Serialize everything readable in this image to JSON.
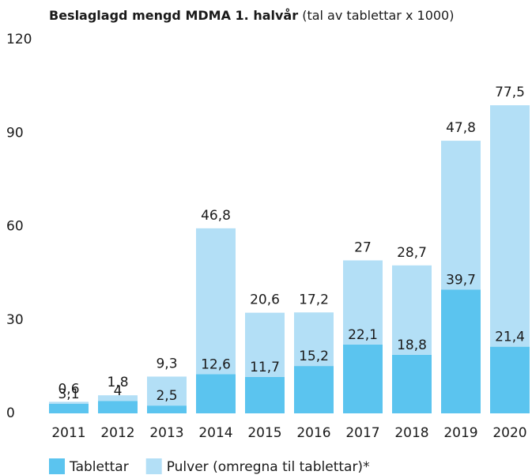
{
  "chart_data": {
    "type": "stacked_bar",
    "title": "Beslaglagd mengd MDMA 1. halvår",
    "subtitle": "(tal av tablettar x 1000)",
    "categories": [
      "2011",
      "2012",
      "2013",
      "2014",
      "2015",
      "2016",
      "2017",
      "2018",
      "2019",
      "2020"
    ],
    "series": [
      {
        "name": "Tablettar",
        "color": "#5bc4ef",
        "values": [
          3.1,
          4,
          2.5,
          12.6,
          11.7,
          15.2,
          22.1,
          18.8,
          39.7,
          21.4
        ],
        "value_labels": [
          "3,1",
          "4",
          "2,5",
          "12,6",
          "11,7",
          "15,2",
          "22,1",
          "18,8",
          "39,7",
          "21,4"
        ]
      },
      {
        "name": "Pulver (omregna til tablettar)*",
        "color": "#b3dff6",
        "values": [
          0.6,
          1.8,
          9.3,
          46.8,
          20.6,
          17.2,
          27,
          28.7,
          47.8,
          77.5
        ],
        "value_labels": [
          "0,6",
          "1,8",
          "9,3",
          "46,8",
          "20,6",
          "17,2",
          "27",
          "28,7",
          "47,8",
          "77,5"
        ]
      }
    ],
    "ylim": [
      0,
      120
    ],
    "yticks": [
      0,
      30,
      60,
      90,
      120
    ],
    "grid": false,
    "legend": "bottom"
  }
}
